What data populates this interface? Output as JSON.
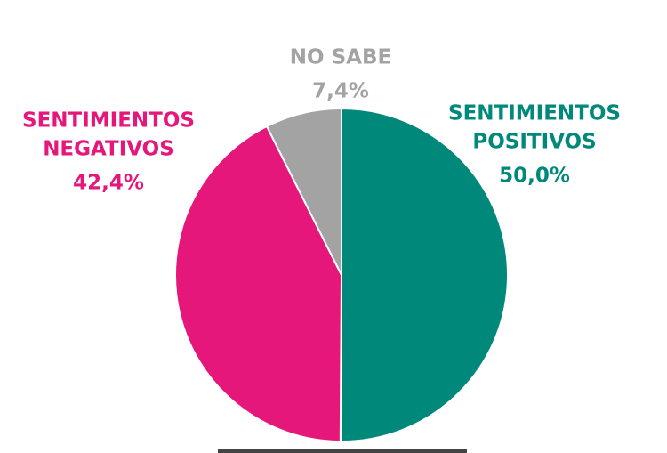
{
  "chart_data": {
    "type": "pie",
    "categories": [
      [
        "SENTIMIENTOS",
        "POSITIVOS"
      ],
      [
        "SENTIMIENTOS",
        "NEGATIVOS"
      ],
      [
        "NO SABE"
      ]
    ],
    "values": [
      50,
      42.4,
      7.4
    ],
    "value_labels": [
      "50,0%",
      "42,4%",
      "7,4%"
    ],
    "colors": [
      "#00897b",
      "#e5177b",
      "#a3a3a3"
    ]
  }
}
